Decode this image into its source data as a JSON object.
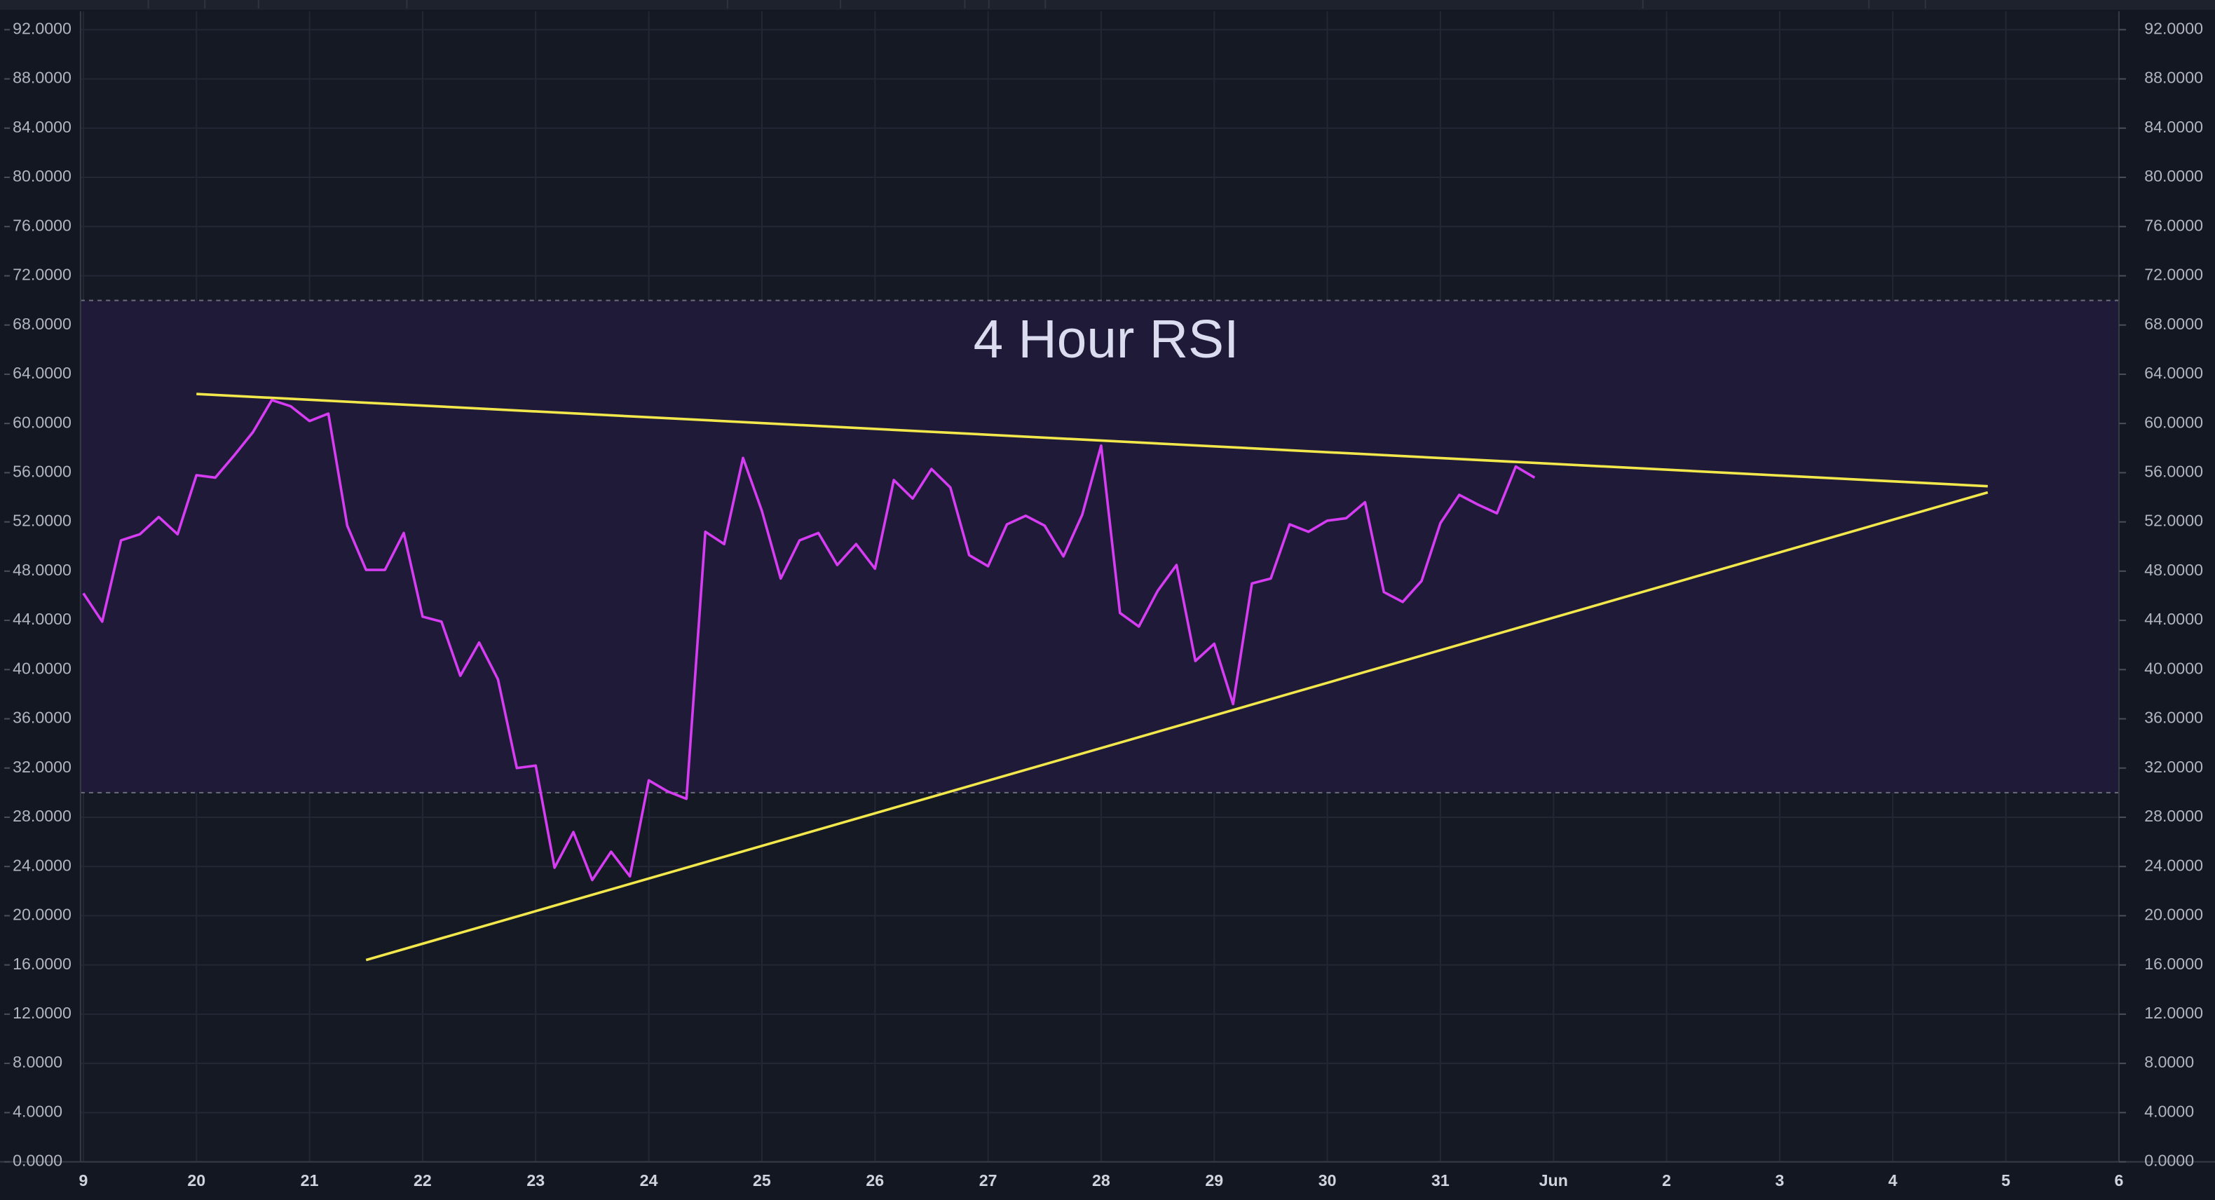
{
  "chart_data": {
    "type": "line",
    "annotation": "4 Hour RSI",
    "x": [
      19,
      19.1667,
      19.3333,
      19.5,
      19.6667,
      19.8333,
      20,
      20.1667,
      20.3333,
      20.5,
      20.6667,
      20.8333,
      21,
      21.1667,
      21.3333,
      21.5,
      21.6667,
      21.8333,
      22,
      22.1667,
      22.3333,
      22.5,
      22.6667,
      22.8333,
      23,
      23.1667,
      23.3333,
      23.5,
      23.6667,
      23.8333,
      24,
      24.1667,
      24.3333,
      24.5,
      24.6667,
      24.8333,
      25,
      25.1667,
      25.3333,
      25.5,
      25.6667,
      25.8333,
      26,
      26.1667,
      26.3333,
      26.5,
      26.6667,
      26.8333,
      27,
      27.1667,
      27.3333,
      27.5,
      27.6667,
      27.8333,
      28,
      28.1667,
      28.3333,
      28.5,
      28.6667,
      28.8333,
      29,
      29.1667,
      29.3333,
      29.5,
      29.6667,
      29.8333,
      30,
      30.1667,
      30.3333,
      30.5,
      30.6667,
      30.8333,
      31,
      31.1667,
      31.3333,
      31.5,
      31.6667,
      31.8333
    ],
    "values": [
      46.2,
      43.9,
      50.5,
      51,
      52.4,
      51,
      55.8,
      55.6,
      57.4,
      59.3,
      61.9,
      61.4,
      60.2,
      60.8,
      51.7,
      48.1,
      48.1,
      51.1,
      44.3,
      43.9,
      39.5,
      42.2,
      39.2,
      32,
      32.2,
      23.9,
      26.8,
      22.9,
      25.2,
      23.2,
      31,
      30.1,
      29.5,
      51.2,
      50.2,
      57.2,
      52.9,
      47.4,
      50.5,
      51.1,
      48.5,
      50.2,
      48.2,
      55.4,
      53.9,
      56.3,
      54.8,
      49.3,
      48.4,
      51.8,
      52.5,
      51.7,
      49.2,
      52.6,
      58.2,
      44.6,
      43.5,
      46.4,
      48.5,
      40.7,
      42.1,
      37.2,
      47,
      47.4,
      51.8,
      51.2,
      52.1,
      52.3,
      53.6,
      46.3,
      45.5,
      47.2,
      51.9,
      54.2,
      53.4,
      52.7,
      56.5,
      55.6
    ],
    "color": "#d63df2",
    "hlines": [
      70,
      30
    ],
    "band_color": "#1f1a38",
    "trendlines": [
      {
        "x": [
          20,
          35.84
        ],
        "y": [
          62.4,
          54.9
        ],
        "color": "#f2e84b"
      },
      {
        "x": [
          21.5,
          35.84
        ],
        "y": [
          16.4,
          54.4
        ],
        "color": "#f2e84b"
      }
    ],
    "xlim": [
      18.975,
      37
    ],
    "xticks": [
      {
        "value": 19,
        "label": "9"
      },
      20,
      21,
      22,
      23,
      24,
      25,
      26,
      27,
      28,
      29,
      30,
      31,
      {
        "value": 32,
        "label": "Jun"
      },
      {
        "value": 33,
        "label": "2"
      },
      {
        "value": 34,
        "label": "3"
      },
      {
        "value": 35,
        "label": "4"
      },
      {
        "value": 36,
        "label": "5"
      },
      {
        "value": 37,
        "label": "6"
      }
    ],
    "ylim": [
      0,
      92
    ],
    "yticks": [
      {
        "value": 0,
        "label": "0.0000"
      },
      {
        "value": 4,
        "label": "4.0000"
      },
      {
        "value": 8,
        "label": "8.0000"
      },
      {
        "value": 12,
        "label": "12.0000"
      },
      {
        "value": 16,
        "label": "16.0000"
      },
      {
        "value": 20,
        "label": "20.0000"
      },
      {
        "value": 24,
        "label": "24.0000"
      },
      {
        "value": 28,
        "label": "28.0000"
      },
      {
        "value": 32,
        "label": "32.0000"
      },
      {
        "value": 36,
        "label": "36.0000"
      },
      {
        "value": 40,
        "label": "40.0000"
      },
      {
        "value": 44,
        "label": "44.0000"
      },
      {
        "value": 48,
        "label": "48.0000"
      },
      {
        "value": 52,
        "label": "52.0000"
      },
      {
        "value": 56,
        "label": "56.0000"
      },
      {
        "value": 60,
        "label": "60.0000"
      },
      {
        "value": 64,
        "label": "64.0000"
      },
      {
        "value": 68,
        "label": "68.0000"
      },
      {
        "value": 72,
        "label": "72.0000"
      },
      {
        "value": 76,
        "label": "76.0000"
      },
      {
        "value": 80,
        "label": "80.0000"
      },
      {
        "value": 84,
        "label": "84.0000"
      },
      {
        "value": 88,
        "label": "88.0000"
      },
      {
        "value": 92,
        "label": "92.0000"
      }
    ],
    "grid": true
  }
}
